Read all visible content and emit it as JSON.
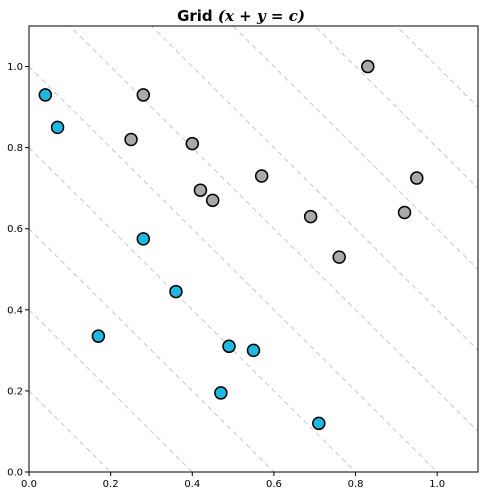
{
  "chart_data": {
    "type": "scatter",
    "title": "Grid",
    "title_math": "(x + y = c)",
    "xlabel": "",
    "ylabel": "",
    "xlim": [
      0.0,
      1.1
    ],
    "ylim": [
      0.0,
      1.1
    ],
    "xticks": [
      "0.0",
      "0.2",
      "0.4",
      "0.6",
      "0.8",
      "1.0"
    ],
    "yticks": [
      "0.0",
      "0.2",
      "0.4",
      "0.6",
      "0.8",
      "1.0"
    ],
    "grid": false,
    "reference_lines": {
      "form": "x + y = c",
      "c_values": [
        0.2,
        0.4,
        0.6,
        0.8,
        1.0,
        1.2,
        1.4,
        1.6,
        1.8,
        2.0
      ],
      "color": "#c8c8c8",
      "style": "dashed"
    },
    "series": [
      {
        "color": "#1fb8e0",
        "points": [
          {
            "x": 0.04,
            "y": 0.93
          },
          {
            "x": 0.07,
            "y": 0.85
          },
          {
            "x": 0.17,
            "y": 0.335
          },
          {
            "x": 0.28,
            "y": 0.575
          },
          {
            "x": 0.36,
            "y": 0.445
          },
          {
            "x": 0.47,
            "y": 0.195
          },
          {
            "x": 0.49,
            "y": 0.31
          },
          {
            "x": 0.55,
            "y": 0.3
          },
          {
            "x": 0.71,
            "y": 0.12
          }
        ]
      },
      {
        "color": "#a9a9a9",
        "points": [
          {
            "x": 0.25,
            "y": 0.82
          },
          {
            "x": 0.28,
            "y": 0.93
          },
          {
            "x": 0.4,
            "y": 0.81
          },
          {
            "x": 0.42,
            "y": 0.695
          },
          {
            "x": 0.45,
            "y": 0.67
          },
          {
            "x": 0.57,
            "y": 0.73
          },
          {
            "x": 0.69,
            "y": 0.63
          },
          {
            "x": 0.76,
            "y": 0.53
          },
          {
            "x": 0.83,
            "y": 1.0
          },
          {
            "x": 0.92,
            "y": 0.64
          },
          {
            "x": 0.95,
            "y": 0.725
          }
        ]
      }
    ]
  }
}
